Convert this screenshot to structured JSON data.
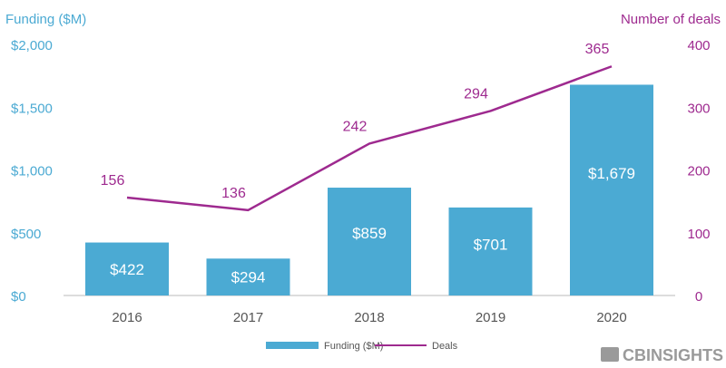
{
  "chart_data": {
    "type": "bar",
    "categories": [
      "2016",
      "2017",
      "2018",
      "2019",
      "2020"
    ],
    "series": [
      {
        "name": "Funding ($M)",
        "kind": "bar",
        "axis": "left",
        "values": [
          422,
          294,
          859,
          701,
          1679
        ],
        "labels": [
          "$422",
          "$294",
          "$859",
          "$701",
          "$1,679"
        ]
      },
      {
        "name": "Deals",
        "kind": "line",
        "axis": "right",
        "values": [
          156,
          136,
          242,
          294,
          365
        ],
        "labels": [
          "156",
          "136",
          "242",
          "294",
          "365"
        ]
      }
    ],
    "left_axis": {
      "label": "Funding ($M)",
      "range": [
        0,
        2000
      ],
      "ticks": [
        0,
        500,
        1000,
        1500,
        2000
      ],
      "tick_labels": [
        "$0",
        "$500",
        "$1,000",
        "$1,500",
        "$2,000"
      ]
    },
    "right_axis": {
      "label": "Number of deals",
      "range": [
        0,
        400
      ],
      "ticks": [
        0,
        100,
        200,
        300,
        400
      ],
      "tick_labels": [
        "0",
        "100",
        "200",
        "300",
        "400"
      ]
    },
    "grid": false,
    "legend": {
      "position": "bottom",
      "entries": [
        "Funding ($M)",
        "Deals"
      ]
    },
    "colors": {
      "bar": "#4BAAD3",
      "line": "#9E2A8F",
      "text": "#555555"
    }
  },
  "branding": {
    "logo": "CBINSIGHTS"
  }
}
